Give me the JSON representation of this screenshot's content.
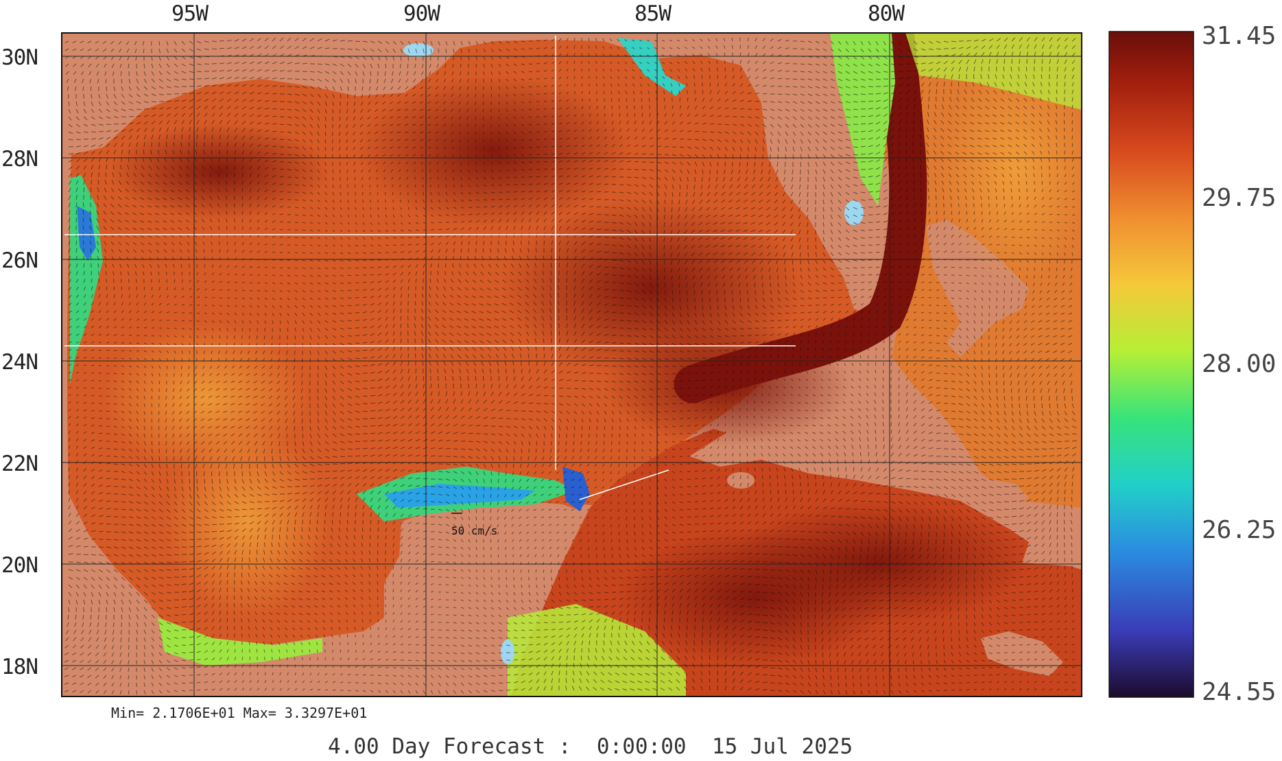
{
  "colors": {
    "land": "#d4896a",
    "lake": "#9dd7f0",
    "grid": "#222222",
    "section_line": "#ffffff",
    "scale_stops": [
      "#2b0a3a",
      "#3b4fc0",
      "#29c4d0",
      "#2fe38a",
      "#b8f03a",
      "#f2c23c",
      "#f08a2e",
      "#d4451c",
      "#9c1c0c",
      "#6e0f0b"
    ]
  },
  "map": {
    "longitude_labels": [
      "95W",
      "90W",
      "85W",
      "80W"
    ],
    "latitude_labels": [
      "30N",
      "28N",
      "26N",
      "24N",
      "22N",
      "20N",
      "18N"
    ],
    "reference_vector_label": "50 cm/s"
  },
  "colorbar": {
    "labels": [
      "31.45",
      "29.75",
      "28.00",
      "26.25",
      "24.55"
    ]
  },
  "stats": {
    "text": "Min= 2.1706E+01  Max= 3.3297E+01"
  },
  "footer": {
    "text": "4.00 Day Forecast :  0:00:00  15 Jul 2025"
  }
}
